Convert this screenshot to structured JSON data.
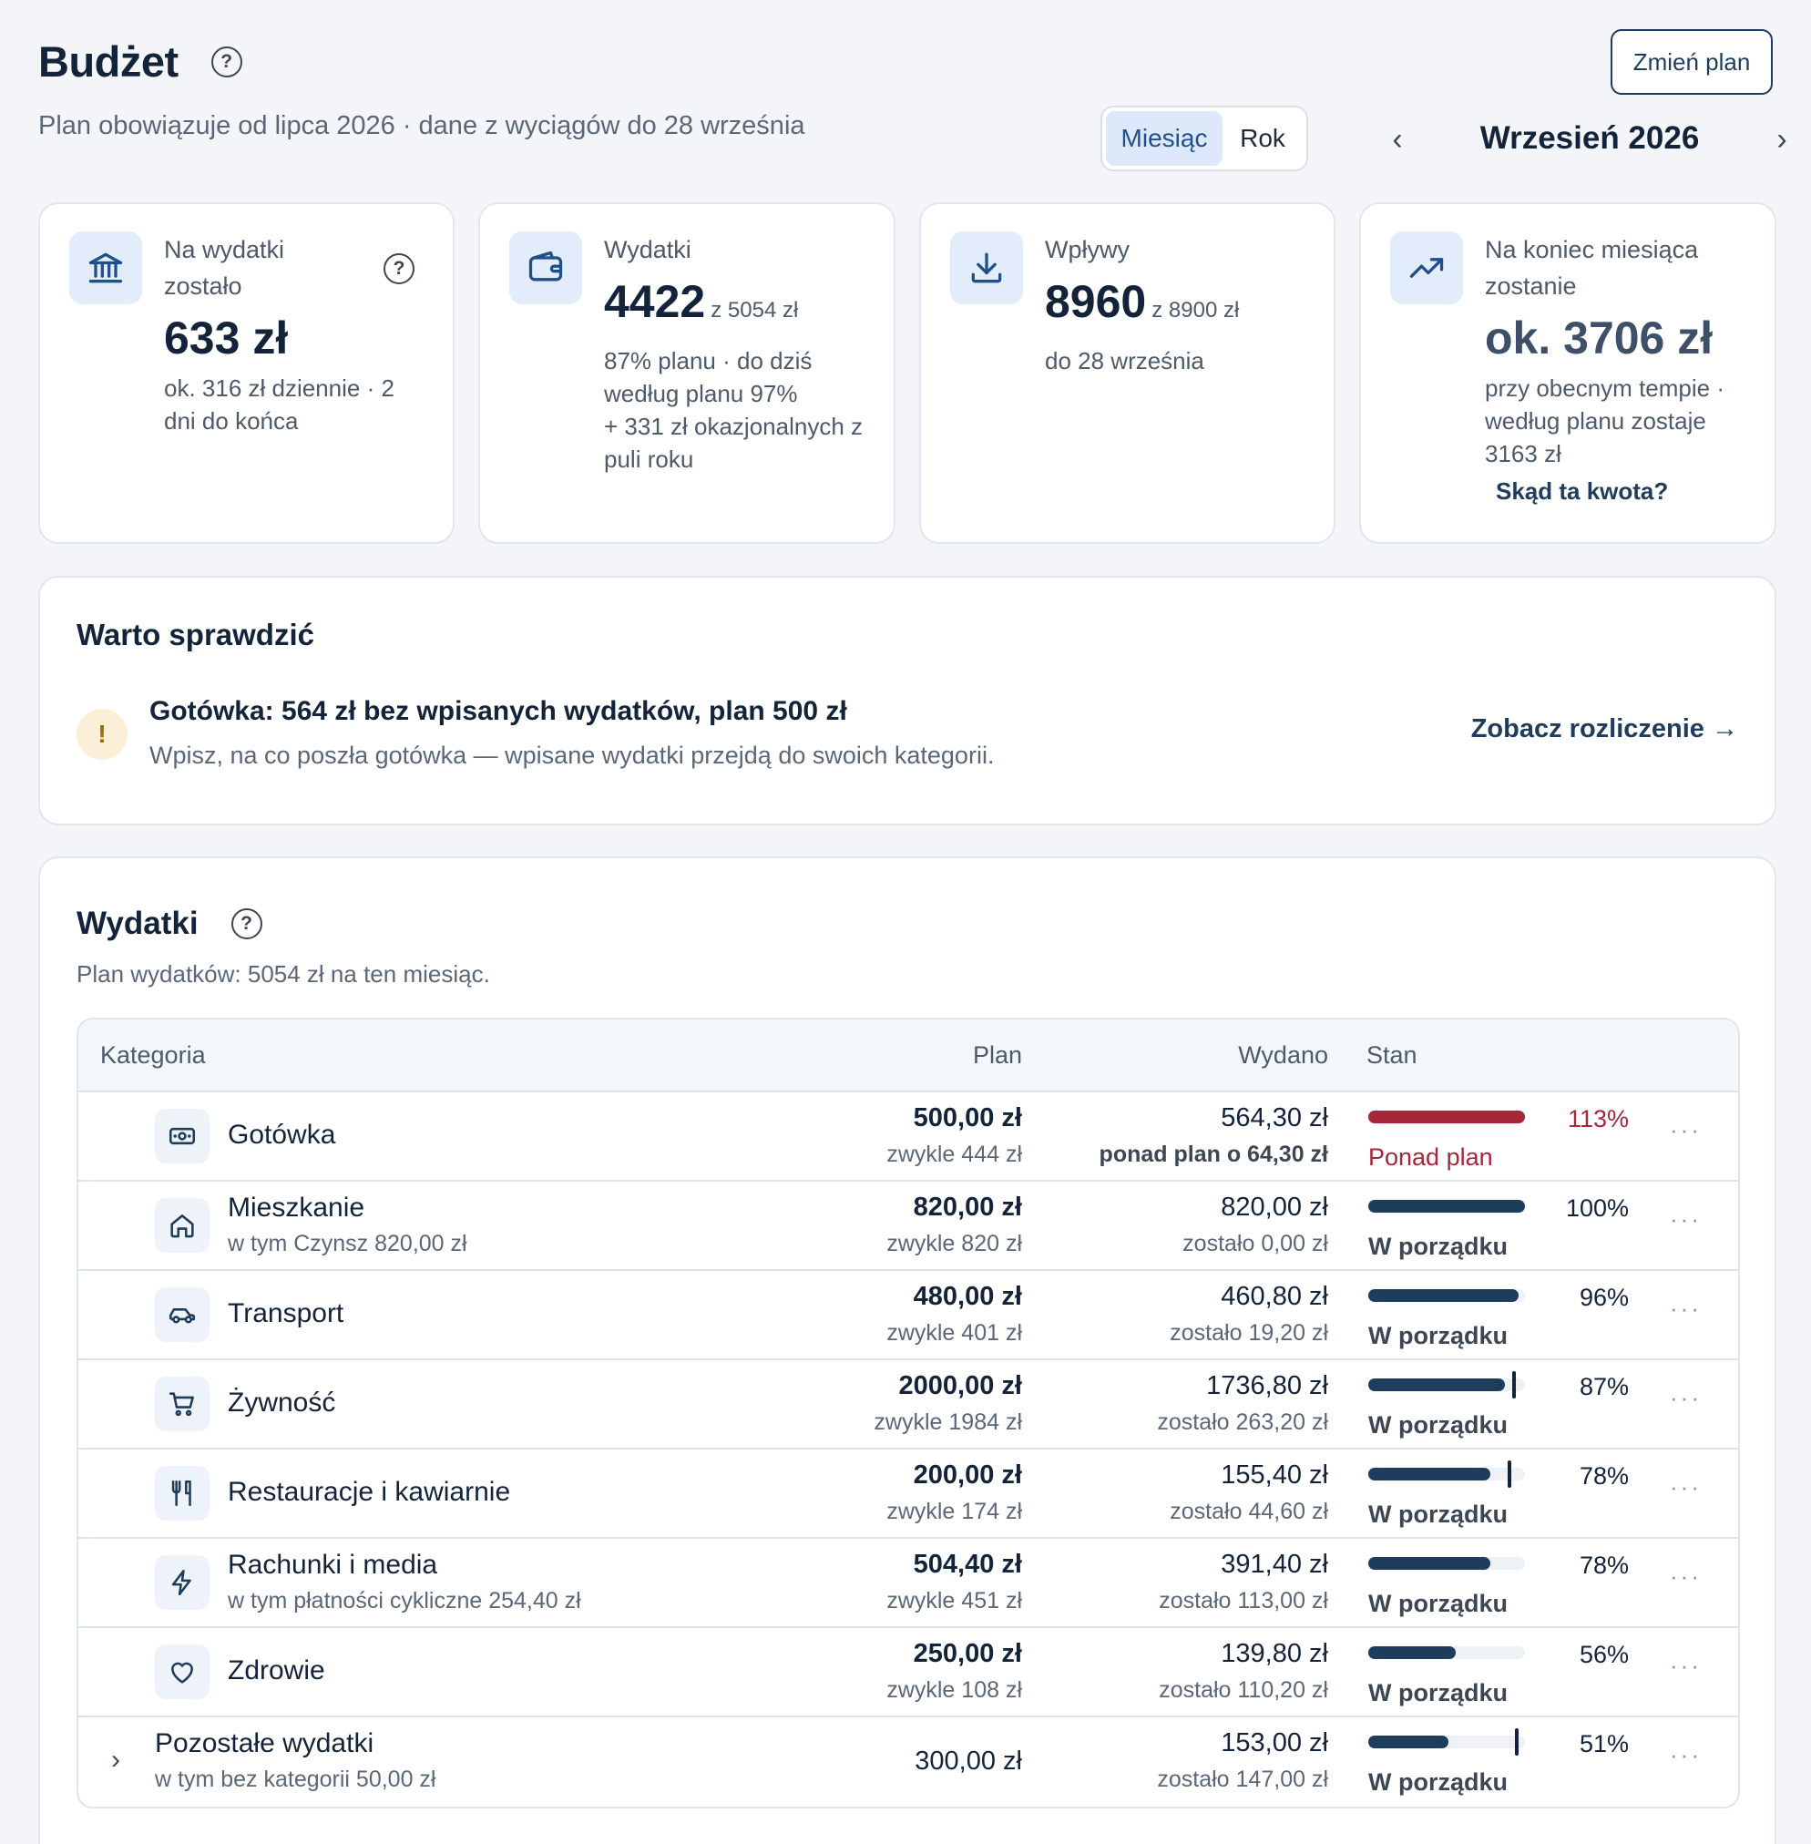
{
  "header": {
    "title": "Budżet",
    "subtitle": "Plan obowiązuje od lipca 2026 · dane z wyciągów do 28 września",
    "change_plan": "Zmień plan",
    "toggle": {
      "month": "Miesiąc",
      "year": "Rok"
    },
    "period": "Wrzesień 2026",
    "prev": "‹",
    "next": "›"
  },
  "cards": [
    {
      "label": "Na wydatki zostało",
      "value": "633 zł",
      "of": "",
      "detail": [
        "ok. 316 zł dziennie · 2 dni do końca"
      ],
      "link": ""
    },
    {
      "label": "Wydatki",
      "value": "4422",
      "of": "z 5054 zł",
      "detail": [
        "87% planu · do dziś według planu 97%",
        "+ 331 zł okazjonalnych z puli roku"
      ],
      "link": ""
    },
    {
      "label": "Wpływy",
      "value": "8960",
      "of": "z 8900 zł",
      "detail": [
        "do 28 września"
      ],
      "link": ""
    },
    {
      "label": "Na koniec miesiąca zostanie",
      "value": "ok. 3706 zł",
      "of": "",
      "detail": [
        "przy obecnym tempie · według planu zostaje 3163 zł"
      ],
      "link": "Skąd ta kwota?"
    }
  ],
  "check": {
    "title": "Warto sprawdzić",
    "icon": "!",
    "headline": "Gotówka: 564 zł bez wpisanych wydatków, plan 500 zł",
    "text": "Wpisz, na co poszła gotówka — wpisane wydatki przejdą do swoich kategorii.",
    "link": "Zobacz rozliczenie →"
  },
  "expenses": {
    "title": "Wydatki",
    "subtitle": "Plan wydatków: 5054 zł na ten miesiąc.",
    "columns": {
      "category": "Kategoria",
      "plan": "Plan",
      "spent": "Wydano",
      "state": "Stan"
    },
    "rows": [
      {
        "name": "Gotówka",
        "sub": "",
        "plan": "500,00 zł",
        "plan_sub": "zwykle 444 zł",
        "spent": "564,30 zł",
        "spent_sub": "ponad plan o 64,30 zł",
        "pct": "113%",
        "state": "Ponad plan",
        "fill": 100,
        "mark": null,
        "over": true,
        "icon": "cash-icon"
      },
      {
        "name": "Mieszkanie",
        "sub": "w tym Czynsz 820,00 zł",
        "plan": "820,00 zł",
        "plan_sub": "zwykle 820 zł",
        "spent": "820,00 zł",
        "spent_sub": "zostało 0,00 zł",
        "pct": "100%",
        "state": "W porządku",
        "fill": 100,
        "mark": null,
        "over": false,
        "icon": "home-icon"
      },
      {
        "name": "Transport",
        "sub": "",
        "plan": "480,00 zł",
        "plan_sub": "zwykle 401 zł",
        "spent": "460,80 zł",
        "spent_sub": "zostało 19,20 zł",
        "pct": "96%",
        "state": "W porządku",
        "fill": 96,
        "mark": null,
        "over": false,
        "icon": "car-icon"
      },
      {
        "name": "Żywność",
        "sub": "",
        "plan": "2000,00 zł",
        "plan_sub": "zwykle 1984 zł",
        "spent": "1736,80 zł",
        "spent_sub": "zostało 263,20 zł",
        "pct": "87%",
        "state": "W porządku",
        "fill": 87,
        "mark": 93,
        "over": false,
        "icon": "cart-icon"
      },
      {
        "name": "Restauracje i kawiarnie",
        "sub": "",
        "plan": "200,00 zł",
        "plan_sub": "zwykle 174 zł",
        "spent": "155,40 zł",
        "spent_sub": "zostało 44,60 zł",
        "pct": "78%",
        "state": "W porządku",
        "fill": 78,
        "mark": 90,
        "over": false,
        "icon": "cutlery-icon"
      },
      {
        "name": "Rachunki i media",
        "sub": "w tym płatności cykliczne 254,40 zł",
        "plan": "504,40 zł",
        "plan_sub": "zwykle 451 zł",
        "spent": "391,40 zł",
        "spent_sub": "zostało 113,00 zł",
        "pct": "78%",
        "state": "W porządku",
        "fill": 78,
        "mark": null,
        "over": false,
        "icon": "bolt-icon"
      },
      {
        "name": "Zdrowie",
        "sub": "",
        "plan": "250,00 zł",
        "plan_sub": "zwykle 108 zł",
        "spent": "139,80 zł",
        "spent_sub": "zostało 110,20 zł",
        "pct": "56%",
        "state": "W porządku",
        "fill": 56,
        "mark": null,
        "over": false,
        "icon": "heart-icon"
      },
      {
        "name": "Pozostałe wydatki",
        "sub": "w tym bez kategorii 50,00 zł",
        "plan": "300,00 zł",
        "plan_sub": "",
        "spent": "153,00 zł",
        "spent_sub": "zostało 147,00 zł",
        "pct": "51%",
        "state": "W porządku",
        "fill": 51,
        "mark": 95,
        "over": false,
        "icon": "",
        "expandable": true,
        "expand": "›"
      }
    ]
  },
  "colors": {
    "accent": "#1e3c5c",
    "over": "#a6263a",
    "toggle_active": "#dde9fb"
  }
}
